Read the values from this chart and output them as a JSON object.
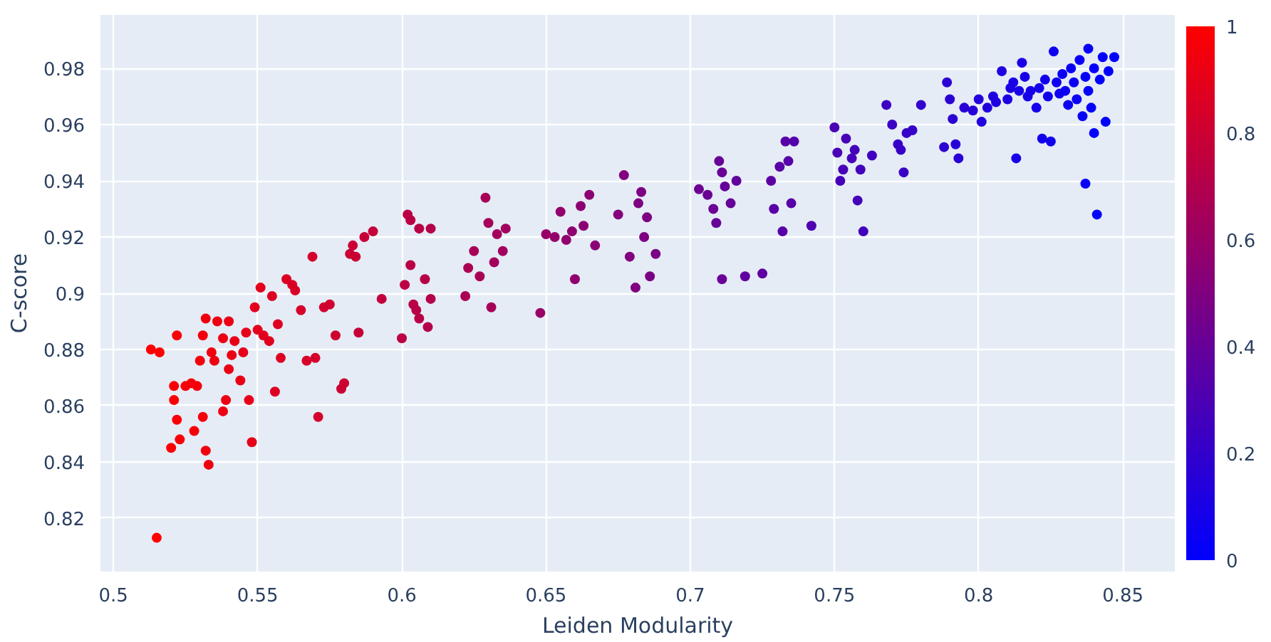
{
  "chart_data": {
    "type": "scatter",
    "xlabel": "Leiden Modularity",
    "ylabel": "C-score",
    "xlim": [
      0.4955,
      0.868
    ],
    "ylim": [
      0.801,
      0.999
    ],
    "xticks": [
      0.5,
      0.55,
      0.6,
      0.65,
      0.7,
      0.75,
      0.8,
      0.85
    ],
    "yticks": [
      0.82,
      0.84,
      0.86,
      0.88,
      0.9,
      0.92,
      0.94,
      0.96,
      0.98
    ],
    "clim": [
      0,
      1
    ],
    "cticks": [
      0,
      0.2,
      0.4,
      0.6,
      0.8,
      1
    ],
    "grid": true,
    "marker": "circle",
    "x": [
      0.513,
      0.516,
      0.515,
      0.52,
      0.521,
      0.521,
      0.522,
      0.522,
      0.523,
      0.525,
      0.527,
      0.528,
      0.529,
      0.53,
      0.531,
      0.531,
      0.532,
      0.532,
      0.533,
      0.534,
      0.535,
      0.536,
      0.538,
      0.538,
      0.539,
      0.54,
      0.54,
      0.541,
      0.542,
      0.544,
      0.545,
      0.546,
      0.547,
      0.548,
      0.549,
      0.55,
      0.551,
      0.552,
      0.554,
      0.555,
      0.556,
      0.557,
      0.558,
      0.56,
      0.562,
      0.563,
      0.565,
      0.567,
      0.569,
      0.57,
      0.571,
      0.573,
      0.575,
      0.577,
      0.579,
      0.58,
      0.582,
      0.583,
      0.584,
      0.585,
      0.587,
      0.59,
      0.593,
      0.6,
      0.601,
      0.602,
      0.603,
      0.603,
      0.604,
      0.605,
      0.606,
      0.606,
      0.608,
      0.609,
      0.61,
      0.61,
      0.622,
      0.623,
      0.625,
      0.627,
      0.629,
      0.63,
      0.631,
      0.632,
      0.633,
      0.635,
      0.636,
      0.648,
      0.65,
      0.653,
      0.655,
      0.657,
      0.659,
      0.66,
      0.662,
      0.663,
      0.665,
      0.667,
      0.675,
      0.677,
      0.679,
      0.681,
      0.682,
      0.683,
      0.684,
      0.685,
      0.686,
      0.688,
      0.703,
      0.706,
      0.708,
      0.709,
      0.71,
      0.711,
      0.711,
      0.712,
      0.714,
      0.716,
      0.719,
      0.725,
      0.728,
      0.729,
      0.731,
      0.732,
      0.733,
      0.734,
      0.735,
      0.736,
      0.742,
      0.75,
      0.751,
      0.752,
      0.753,
      0.754,
      0.756,
      0.757,
      0.758,
      0.759,
      0.76,
      0.763,
      0.768,
      0.77,
      0.772,
      0.773,
      0.774,
      0.775,
      0.777,
      0.78,
      0.788,
      0.789,
      0.79,
      0.791,
      0.792,
      0.793,
      0.795,
      0.798,
      0.8,
      0.801,
      0.803,
      0.805,
      0.806,
      0.808,
      0.81,
      0.811,
      0.812,
      0.813,
      0.814,
      0.815,
      0.816,
      0.817,
      0.818,
      0.82,
      0.821,
      0.822,
      0.823,
      0.824,
      0.825,
      0.826,
      0.827,
      0.828,
      0.829,
      0.83,
      0.831,
      0.832,
      0.833,
      0.834,
      0.835,
      0.836,
      0.837,
      0.837,
      0.838,
      0.838,
      0.839,
      0.84,
      0.84,
      0.841,
      0.842,
      0.843,
      0.844,
      0.845,
      0.847
    ],
    "values": [
      0.88,
      0.879,
      0.813,
      0.845,
      0.867,
      0.862,
      0.885,
      0.855,
      0.848,
      0.867,
      0.868,
      0.851,
      0.867,
      0.876,
      0.885,
      0.856,
      0.891,
      0.844,
      0.839,
      0.879,
      0.876,
      0.89,
      0.858,
      0.884,
      0.862,
      0.873,
      0.89,
      0.878,
      0.883,
      0.869,
      0.879,
      0.886,
      0.862,
      0.847,
      0.895,
      0.887,
      0.902,
      0.885,
      0.883,
      0.899,
      0.865,
      0.889,
      0.877,
      0.905,
      0.903,
      0.901,
      0.894,
      0.876,
      0.913,
      0.877,
      0.856,
      0.895,
      0.896,
      0.885,
      0.866,
      0.868,
      0.914,
      0.917,
      0.913,
      0.886,
      0.92,
      0.922,
      0.898,
      0.884,
      0.903,
      0.928,
      0.926,
      0.91,
      0.896,
      0.894,
      0.923,
      0.891,
      0.905,
      0.888,
      0.898,
      0.923,
      0.899,
      0.909,
      0.915,
      0.906,
      0.934,
      0.925,
      0.895,
      0.911,
      0.921,
      0.915,
      0.923,
      0.893,
      0.921,
      0.92,
      0.929,
      0.919,
      0.922,
      0.905,
      0.931,
      0.924,
      0.935,
      0.917,
      0.928,
      0.942,
      0.913,
      0.902,
      0.932,
      0.936,
      0.92,
      0.927,
      0.906,
      0.914,
      0.937,
      0.935,
      0.93,
      0.925,
      0.947,
      0.943,
      0.905,
      0.938,
      0.932,
      0.94,
      0.906,
      0.907,
      0.94,
      0.93,
      0.945,
      0.922,
      0.954,
      0.947,
      0.932,
      0.954,
      0.924,
      0.959,
      0.95,
      0.94,
      0.944,
      0.955,
      0.948,
      0.951,
      0.933,
      0.944,
      0.922,
      0.949,
      0.967,
      0.96,
      0.953,
      0.951,
      0.943,
      0.957,
      0.958,
      0.967,
      0.952,
      0.975,
      0.969,
      0.962,
      0.953,
      0.948,
      0.966,
      0.965,
      0.969,
      0.961,
      0.966,
      0.97,
      0.968,
      0.979,
      0.969,
      0.973,
      0.975,
      0.948,
      0.972,
      0.982,
      0.977,
      0.97,
      0.972,
      0.966,
      0.973,
      0.955,
      0.976,
      0.97,
      0.954,
      0.986,
      0.975,
      0.971,
      0.978,
      0.972,
      0.967,
      0.98,
      0.975,
      0.969,
      0.983,
      0.963,
      0.977,
      0.939,
      0.987,
      0.972,
      0.966,
      0.98,
      0.957,
      0.928,
      0.976,
      0.984,
      0.961,
      0.979,
      0.984
    ],
    "cvalues": [
      1.0,
      0.99,
      1.0,
      0.98,
      0.98,
      0.98,
      0.97,
      0.97,
      0.97,
      0.97,
      0.96,
      0.96,
      0.95,
      0.95,
      0.95,
      0.95,
      0.94,
      0.94,
      0.94,
      0.94,
      0.93,
      0.93,
      0.92,
      0.92,
      0.92,
      0.92,
      0.92,
      0.92,
      0.91,
      0.91,
      0.9,
      0.9,
      0.9,
      0.9,
      0.89,
      0.89,
      0.89,
      0.88,
      0.88,
      0.87,
      0.87,
      0.87,
      0.87,
      0.86,
      0.85,
      0.85,
      0.84,
      0.84,
      0.83,
      0.83,
      0.83,
      0.82,
      0.81,
      0.81,
      0.8,
      0.8,
      0.79,
      0.79,
      0.79,
      0.78,
      0.78,
      0.77,
      0.76,
      0.74,
      0.74,
      0.73,
      0.73,
      0.73,
      0.73,
      0.72,
      0.72,
      0.72,
      0.72,
      0.71,
      0.71,
      0.71,
      0.67,
      0.67,
      0.66,
      0.66,
      0.65,
      0.65,
      0.65,
      0.64,
      0.64,
      0.63,
      0.63,
      0.6,
      0.59,
      0.58,
      0.58,
      0.57,
      0.56,
      0.56,
      0.55,
      0.55,
      0.55,
      0.54,
      0.52,
      0.51,
      0.5,
      0.5,
      0.49,
      0.49,
      0.49,
      0.49,
      0.48,
      0.48,
      0.43,
      0.42,
      0.42,
      0.41,
      0.41,
      0.41,
      0.41,
      0.4,
      0.4,
      0.39,
      0.38,
      0.37,
      0.36,
      0.35,
      0.35,
      0.34,
      0.34,
      0.34,
      0.34,
      0.33,
      0.31,
      0.29,
      0.29,
      0.28,
      0.28,
      0.28,
      0.27,
      0.27,
      0.27,
      0.26,
      0.26,
      0.25,
      0.24,
      0.23,
      0.22,
      0.22,
      0.22,
      0.22,
      0.21,
      0.2,
      0.18,
      0.17,
      0.17,
      0.17,
      0.16,
      0.16,
      0.16,
      0.15,
      0.14,
      0.14,
      0.13,
      0.13,
      0.12,
      0.12,
      0.11,
      0.11,
      0.1,
      0.1,
      0.1,
      0.1,
      0.09,
      0.09,
      0.09,
      0.08,
      0.08,
      0.07,
      0.07,
      0.07,
      0.07,
      0.06,
      0.06,
      0.06,
      0.05,
      0.05,
      0.05,
      0.04,
      0.04,
      0.04,
      0.04,
      0.03,
      0.03,
      0.03,
      0.03,
      0.03,
      0.02,
      0.02,
      0.02,
      0.02,
      0.01,
      0.01,
      0.01,
      0.01,
      0.0
    ]
  }
}
